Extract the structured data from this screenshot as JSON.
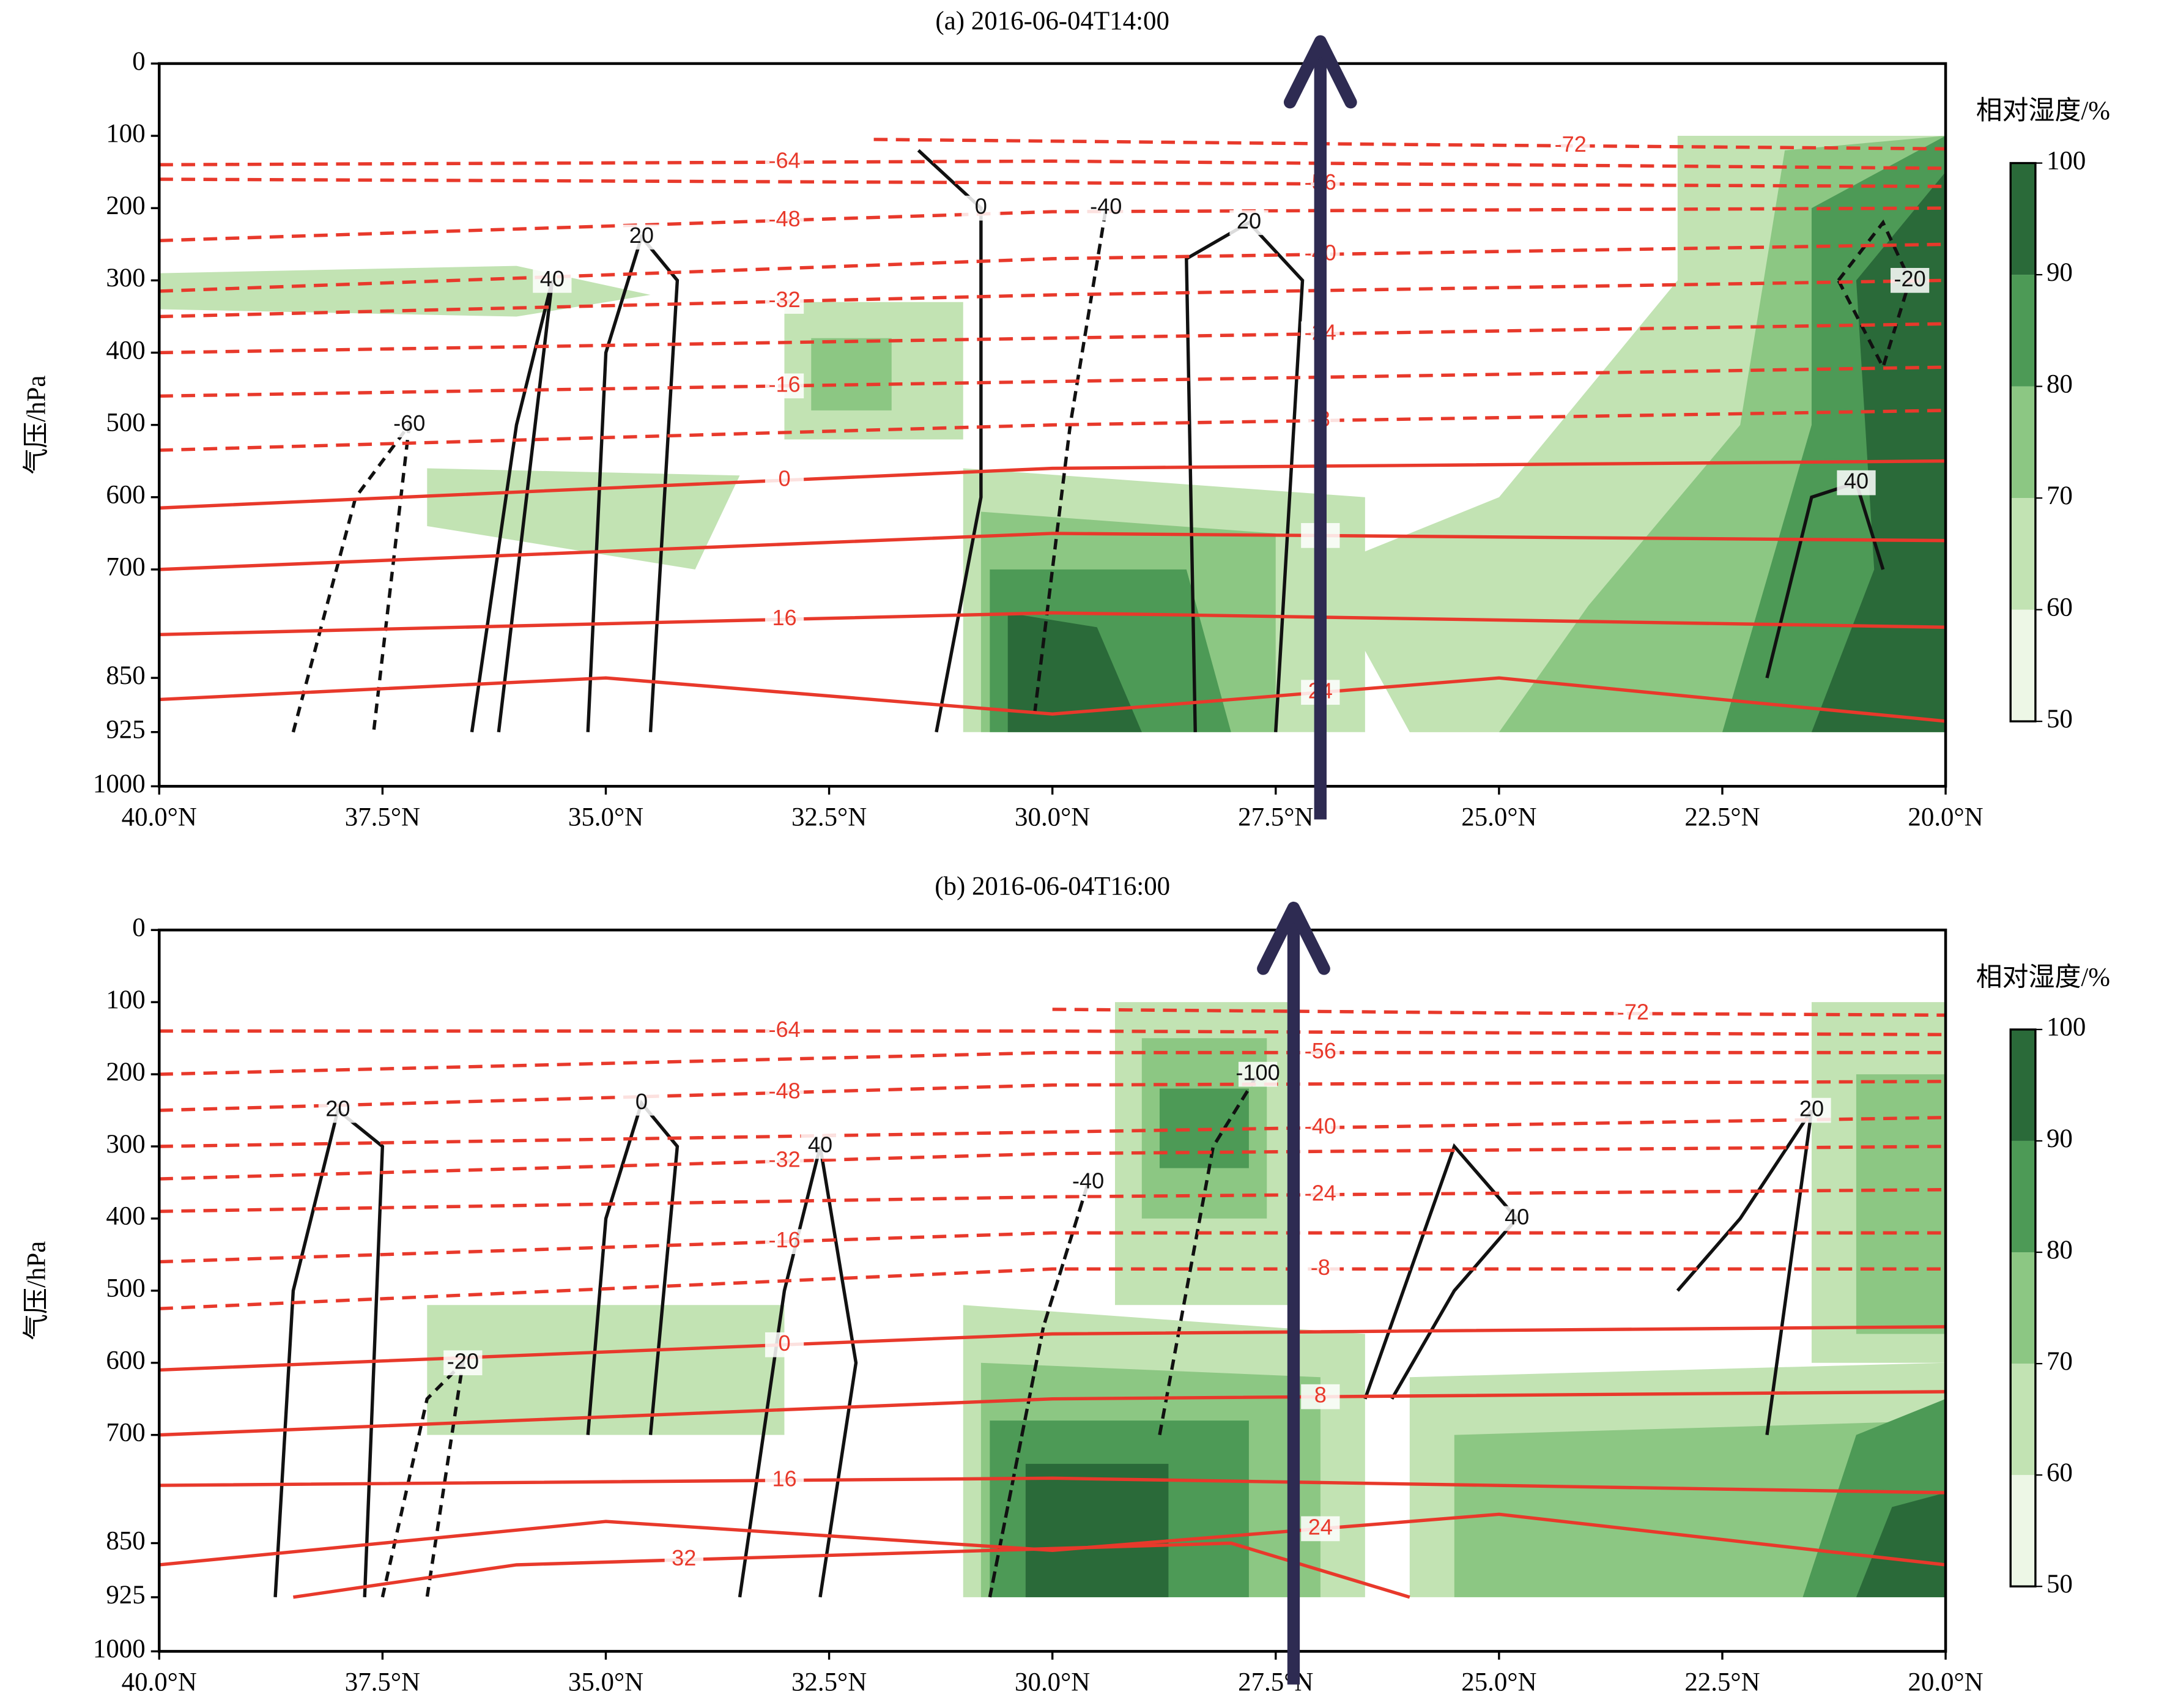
{
  "chart_data": [
    {
      "type": "cross_section",
      "title": "(a) 2016-06-04T14:00",
      "ylabel": "气压/hPa",
      "xlim": [
        40,
        20
      ],
      "xticks": [
        {
          "value": 40,
          "label": "40.0°N"
        },
        {
          "value": 37.5,
          "label": "37.5°N"
        },
        {
          "value": 35,
          "label": "35.0°N"
        },
        {
          "value": 32.5,
          "label": "32.5°N"
        },
        {
          "value": 30,
          "label": "30.0°N"
        },
        {
          "value": 27.5,
          "label": "27.5°N"
        },
        {
          "value": 25,
          "label": "25.0°N"
        },
        {
          "value": 22.5,
          "label": "22.5°N"
        },
        {
          "value": 20,
          "label": "20.0°N"
        }
      ],
      "ylim": [
        1000,
        0
      ],
      "yticks": [
        0,
        100,
        200,
        300,
        400,
        500,
        600,
        700,
        850,
        925,
        1000
      ],
      "colorbar": {
        "label": "相对湿度/%",
        "ticks": [
          50,
          60,
          70,
          80,
          90,
          100
        ],
        "colors": [
          "#edf7e6",
          "#c2e3b3",
          "#8cc783",
          "#4d9a56",
          "#2a6a39"
        ]
      },
      "humidity_regions": [
        {
          "level": 60,
          "x": [
            40,
            36,
            34.5,
            36,
            40
          ],
          "y": [
            290,
            280,
            320,
            350,
            340
          ]
        },
        {
          "level": 60,
          "x": [
            33,
            31,
            31,
            33
          ],
          "y": [
            330,
            330,
            520,
            520
          ]
        },
        {
          "level": 70,
          "x": [
            32.7,
            31.8,
            31.8,
            32.7
          ],
          "y": [
            380,
            380,
            480,
            480
          ]
        },
        {
          "level": 60,
          "x": [
            37,
            33.5,
            34,
            37
          ],
          "y": [
            560,
            570,
            700,
            640
          ]
        },
        {
          "level": 60,
          "x": [
            31,
            26.5,
            26.5,
            31
          ],
          "y": [
            560,
            600,
            925,
            925
          ]
        },
        {
          "level": 70,
          "x": [
            30.8,
            27.5,
            27.5,
            30.8
          ],
          "y": [
            620,
            650,
            925,
            925
          ]
        },
        {
          "level": 80,
          "x": [
            30.7,
            28.5,
            28,
            30.7
          ],
          "y": [
            700,
            700,
            925,
            925
          ]
        },
        {
          "level": 90,
          "x": [
            30.5,
            29.5,
            29,
            30.5
          ],
          "y": [
            760,
            780,
            925,
            925
          ]
        },
        {
          "level": 60,
          "x": [
            26,
            22,
            22,
            26
          ],
          "y": [
            700,
            700,
            925,
            925
          ]
        },
        {
          "level": 70,
          "x": [
            25,
            22.5,
            22.5,
            25
          ],
          "y": [
            750,
            750,
            925,
            925
          ]
        },
        {
          "level": 60,
          "x": [
            23,
            20,
            20,
            26,
            27,
            25,
            23
          ],
          "y": [
            100,
            100,
            925,
            925,
            700,
            600,
            300
          ]
        },
        {
          "level": 70,
          "x": [
            21.8,
            20,
            20,
            25,
            24,
            22.3
          ],
          "y": [
            120,
            100,
            925,
            925,
            750,
            500
          ]
        },
        {
          "level": 80,
          "x": [
            21.5,
            20,
            20,
            22.5,
            21.5
          ],
          "y": [
            200,
            100,
            925,
            925,
            500
          ]
        },
        {
          "level": 90,
          "x": [
            21,
            20,
            20,
            21.5,
            20.8
          ],
          "y": [
            300,
            150,
            925,
            925,
            700
          ]
        }
      ],
      "isotherms": [
        {
          "level": -72,
          "x": [
            32,
            26,
            20
          ],
          "y": [
            105,
            112,
            118
          ]
        },
        {
          "level": -64,
          "x": [
            40,
            30,
            20
          ],
          "y": [
            140,
            135,
            145
          ]
        },
        {
          "level": -56,
          "x": [
            40,
            30,
            20
          ],
          "y": [
            160,
            165,
            170
          ]
        },
        {
          "level": -48,
          "x": [
            40,
            30,
            20
          ],
          "y": [
            245,
            205,
            200
          ]
        },
        {
          "level": -40,
          "x": [
            40,
            30,
            20
          ],
          "y": [
            315,
            270,
            250
          ]
        },
        {
          "level": -32,
          "x": [
            40,
            30,
            20
          ],
          "y": [
            350,
            320,
            300
          ]
        },
        {
          "level": -24,
          "x": [
            40,
            30,
            20
          ],
          "y": [
            400,
            380,
            360
          ]
        },
        {
          "level": -16,
          "x": [
            40,
            30,
            20
          ],
          "y": [
            460,
            440,
            420
          ]
        },
        {
          "level": -8,
          "x": [
            40,
            30,
            20
          ],
          "y": [
            535,
            500,
            480
          ]
        },
        {
          "level": 0,
          "x": [
            40,
            30,
            20
          ],
          "y": [
            615,
            560,
            550
          ]
        },
        {
          "level": 8,
          "x": [
            40,
            30,
            20
          ],
          "y": [
            700,
            650,
            660
          ]
        },
        {
          "level": 16,
          "x": [
            40,
            30,
            20
          ],
          "y": [
            790,
            760,
            780
          ]
        },
        {
          "level": 24,
          "x": [
            40,
            35,
            30,
            25,
            20
          ],
          "y": [
            880,
            850,
            900,
            850,
            910
          ]
        }
      ],
      "omega_contours": [
        {
          "level": 20,
          "x": [
            35.2,
            35,
            34.6,
            34.2,
            34.5
          ],
          "y": [
            925,
            400,
            240,
            300,
            925
          ]
        },
        {
          "level": 0,
          "x": [
            31.3,
            30.8,
            30.8,
            31.5
          ],
          "y": [
            925,
            600,
            200,
            120
          ]
        },
        {
          "level": -40,
          "x": [
            30.2,
            29.8,
            29.4,
            29.8,
            30.2
          ],
          "y": [
            900,
            500,
            200,
            500,
            900
          ]
        },
        {
          "level": 20,
          "x": [
            28.4,
            28.5,
            27.8,
            27.2,
            27.5
          ],
          "y": [
            925,
            270,
            220,
            300,
            925
          ]
        },
        {
          "level": 40,
          "x": [
            22,
            21.5,
            21,
            20.7
          ],
          "y": [
            850,
            600,
            580,
            700
          ]
        },
        {
          "level": -20,
          "x": [
            21.2,
            20.7,
            20.4,
            20.7,
            21.2
          ],
          "y": [
            300,
            220,
            300,
            420,
            300
          ]
        },
        {
          "level": -60,
          "x": [
            38.5,
            37.8,
            37.2,
            37.6
          ],
          "y": [
            925,
            600,
            500,
            925
          ]
        },
        {
          "level": 40,
          "x": [
            36.5,
            36,
            35.6,
            36.2
          ],
          "y": [
            925,
            500,
            300,
            925
          ]
        }
      ],
      "arrow_lat": 27
    },
    {
      "type": "cross_section",
      "title": "(b) 2016-06-04T16:00",
      "ylabel": "气压/hPa",
      "xlim": [
        40,
        20
      ],
      "xticks": [
        {
          "value": 40,
          "label": "40.0°N"
        },
        {
          "value": 37.5,
          "label": "37.5°N"
        },
        {
          "value": 35,
          "label": "35.0°N"
        },
        {
          "value": 32.5,
          "label": "32.5°N"
        },
        {
          "value": 30,
          "label": "30.0°N"
        },
        {
          "value": 27.5,
          "label": "27.5°N"
        },
        {
          "value": 25,
          "label": "25.0°N"
        },
        {
          "value": 22.5,
          "label": "22.5°N"
        },
        {
          "value": 20,
          "label": "20.0°N"
        }
      ],
      "ylim": [
        1000,
        0
      ],
      "yticks": [
        0,
        100,
        200,
        300,
        400,
        500,
        600,
        700,
        850,
        925,
        1000
      ],
      "colorbar": {
        "label": "相对湿度/%",
        "ticks": [
          50,
          60,
          70,
          80,
          90,
          100
        ],
        "colors": [
          "#edf7e6",
          "#c2e3b3",
          "#8cc783",
          "#4d9a56",
          "#2a6a39"
        ]
      },
      "humidity_regions": [
        {
          "level": 60,
          "x": [
            37,
            33,
            33,
            37
          ],
          "y": [
            520,
            520,
            700,
            700
          ]
        },
        {
          "level": 60,
          "x": [
            29.3,
            27.3,
            27.3,
            29.3
          ],
          "y": [
            100,
            100,
            520,
            520
          ]
        },
        {
          "level": 70,
          "x": [
            29,
            27.6,
            27.6,
            29
          ],
          "y": [
            150,
            150,
            400,
            400
          ]
        },
        {
          "level": 80,
          "x": [
            28.8,
            27.8,
            27.8,
            28.8
          ],
          "y": [
            220,
            220,
            330,
            330
          ]
        },
        {
          "level": 60,
          "x": [
            31,
            26.5,
            26.5,
            31
          ],
          "y": [
            520,
            560,
            925,
            925
          ]
        },
        {
          "level": 70,
          "x": [
            30.8,
            27,
            27,
            30.8
          ],
          "y": [
            600,
            620,
            925,
            925
          ]
        },
        {
          "level": 80,
          "x": [
            30.7,
            27.8,
            27.8,
            30.7
          ],
          "y": [
            680,
            680,
            925,
            925
          ]
        },
        {
          "level": 90,
          "x": [
            30.3,
            28.7,
            28.7,
            30.3
          ],
          "y": [
            740,
            740,
            925,
            925
          ]
        },
        {
          "level": 60,
          "x": [
            26,
            20,
            20,
            26
          ],
          "y": [
            620,
            600,
            925,
            925
          ]
        },
        {
          "level": 70,
          "x": [
            25.5,
            20,
            20,
            25.5
          ],
          "y": [
            700,
            680,
            925,
            925
          ]
        },
        {
          "level": 60,
          "x": [
            21.5,
            20,
            20,
            21.5
          ],
          "y": [
            100,
            100,
            600,
            600
          ]
        },
        {
          "level": 70,
          "x": [
            21,
            20,
            20,
            21
          ],
          "y": [
            200,
            200,
            560,
            560
          ]
        },
        {
          "level": 80,
          "x": [
            21,
            20,
            20,
            21.6
          ],
          "y": [
            700,
            650,
            925,
            925
          ]
        },
        {
          "level": 90,
          "x": [
            20.6,
            20,
            20,
            21
          ],
          "y": [
            800,
            780,
            925,
            925
          ]
        }
      ],
      "isotherms": [
        {
          "level": -72,
          "x": [
            30,
            25,
            20
          ],
          "y": [
            110,
            115,
            118
          ]
        },
        {
          "level": -64,
          "x": [
            40,
            30,
            20
          ],
          "y": [
            140,
            140,
            145
          ]
        },
        {
          "level": -56,
          "x": [
            40,
            30,
            20
          ],
          "y": [
            200,
            170,
            170
          ]
        },
        {
          "level": -48,
          "x": [
            40,
            30,
            20
          ],
          "y": [
            250,
            215,
            210
          ]
        },
        {
          "level": -40,
          "x": [
            40,
            30,
            20
          ],
          "y": [
            300,
            280,
            260
          ]
        },
        {
          "level": -32,
          "x": [
            40,
            30,
            20
          ],
          "y": [
            345,
            310,
            300
          ]
        },
        {
          "level": -24,
          "x": [
            40,
            30,
            20
          ],
          "y": [
            390,
            370,
            360
          ]
        },
        {
          "level": -16,
          "x": [
            40,
            30,
            20
          ],
          "y": [
            460,
            420,
            420
          ]
        },
        {
          "level": -8,
          "x": [
            40,
            30,
            20
          ],
          "y": [
            525,
            470,
            470
          ]
        },
        {
          "level": 0,
          "x": [
            40,
            30,
            20
          ],
          "y": [
            610,
            560,
            550
          ]
        },
        {
          "level": 8,
          "x": [
            40,
            30,
            20
          ],
          "y": [
            700,
            650,
            640
          ]
        },
        {
          "level": 16,
          "x": [
            40,
            30,
            20
          ],
          "y": [
            770,
            760,
            780
          ]
        },
        {
          "level": 24,
          "x": [
            40,
            35,
            30,
            25,
            20
          ],
          "y": [
            880,
            820,
            860,
            810,
            880
          ]
        },
        {
          "level": 32,
          "x": [
            38.5,
            36,
            28,
            26
          ],
          "y": [
            925,
            880,
            850,
            925
          ]
        }
      ],
      "omega_contours": [
        {
          "level": 20,
          "x": [
            38.7,
            38.5,
            38,
            37.5,
            37.7
          ],
          "y": [
            925,
            500,
            250,
            300,
            925
          ]
        },
        {
          "level": 0,
          "x": [
            35.2,
            35,
            34.6,
            34.2,
            34.5
          ],
          "y": [
            700,
            400,
            240,
            300,
            700
          ]
        },
        {
          "level": 40,
          "x": [
            33.5,
            33,
            32.6,
            32.2,
            32.6
          ],
          "y": [
            925,
            500,
            300,
            600,
            925
          ]
        },
        {
          "level": -40,
          "x": [
            30.7,
            30.1,
            29.6,
            30.1,
            30.7
          ],
          "y": [
            925,
            550,
            350,
            550,
            925
          ]
        },
        {
          "level": -100,
          "x": [
            28.8,
            28.2,
            27.7,
            28.2,
            28.8
          ],
          "y": [
            700,
            300,
            200,
            300,
            700
          ]
        },
        {
          "level": 40,
          "x": [
            26.5,
            25.5,
            24.8,
            25.5,
            26.2
          ],
          "y": [
            650,
            300,
            400,
            500,
            650
          ]
        },
        {
          "level": 20,
          "x": [
            23,
            22.3,
            21.5,
            22
          ],
          "y": [
            500,
            400,
            250,
            700
          ]
        },
        {
          "level": -20,
          "x": [
            37.5,
            37,
            36.6,
            37
          ],
          "y": [
            925,
            650,
            600,
            925
          ]
        }
      ],
      "arrow_lat": 27.3
    }
  ]
}
